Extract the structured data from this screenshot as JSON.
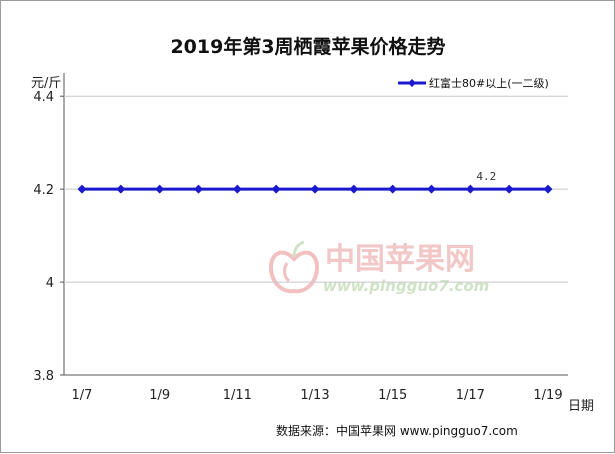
{
  "chart_data": {
    "type": "line",
    "title": "2019年第3周栖霞苹果价格走势",
    "ylabel": "元/斤",
    "xlabel": "日期",
    "categories": [
      "1/7",
      "1/8",
      "1/9",
      "1/10",
      "1/11",
      "1/12",
      "1/13",
      "1/14",
      "1/15",
      "1/16",
      "1/17",
      "1/18",
      "1/19"
    ],
    "x_tick_labels": [
      "1/7",
      "1/9",
      "1/11",
      "1/13",
      "1/15",
      "1/17",
      "1/19"
    ],
    "y_tick_labels": [
      "3.8",
      "4",
      "4.2",
      "4.4"
    ],
    "ylim": [
      3.8,
      4.45
    ],
    "grid": "horizontal",
    "legend_position": "top-right",
    "series": [
      {
        "name": "红富士80#以上(一二级)",
        "color": "#1a1acc",
        "values": [
          4.2,
          4.2,
          4.2,
          4.2,
          4.2,
          4.2,
          4.2,
          4.2,
          4.2,
          4.2,
          4.2,
          4.2,
          4.2
        ]
      }
    ],
    "annotations": [
      {
        "category": "1/17",
        "text": "4.2"
      }
    ]
  },
  "watermark": {
    "cn": "中国苹果网",
    "url": "www.pingguo7.com",
    "logo": "apple-logo-icon"
  },
  "source_text": "数据来源：中国苹果网 www.pingguo7.com"
}
